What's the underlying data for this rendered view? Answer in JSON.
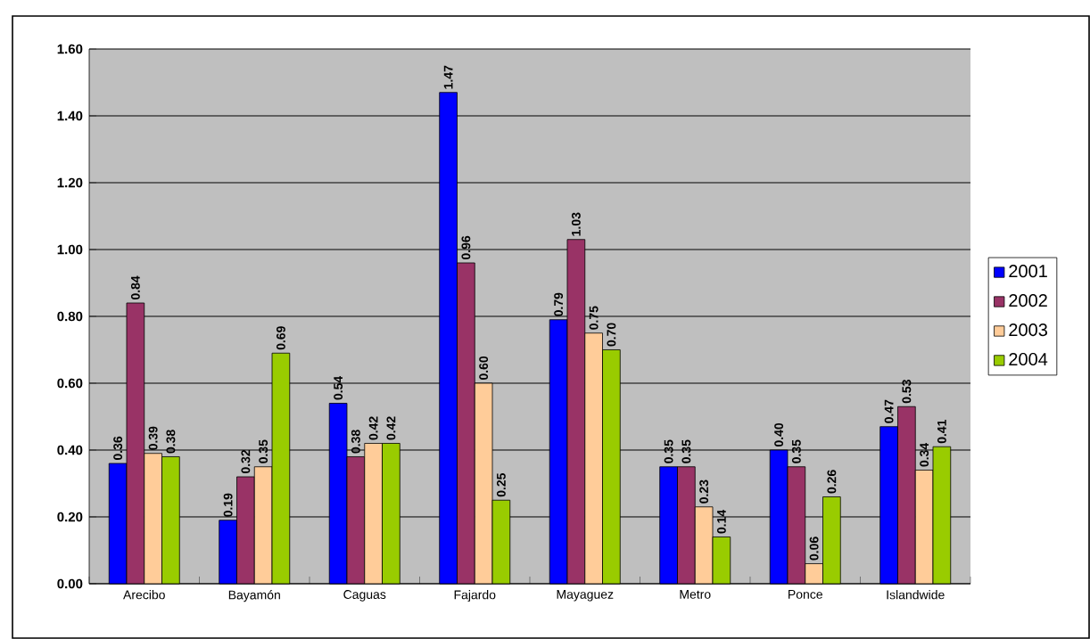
{
  "chart_data": {
    "type": "bar",
    "categories": [
      "Arecibo",
      "Bayamón",
      "Caguas",
      "Fajardo",
      "Mayaguez",
      "Metro",
      "Ponce",
      "Islandwide"
    ],
    "series": [
      {
        "name": "2001",
        "color": "#0000ff",
        "values": [
          0.36,
          0.19,
          0.54,
          1.47,
          0.79,
          0.35,
          0.4,
          0.47
        ],
        "value_labels": [
          "0.36",
          "0.19",
          "0.54",
          "1.47",
          "0.79",
          "0.35",
          "0.40",
          "0.47"
        ]
      },
      {
        "name": "2002",
        "color": "#993366",
        "values": [
          0.84,
          0.32,
          0.38,
          0.96,
          1.03,
          0.35,
          0.35,
          0.53
        ],
        "value_labels": [
          "0.84",
          "0.32",
          "0.38",
          "0.96",
          "1.03",
          "0.35",
          "0.35",
          "0.53"
        ]
      },
      {
        "name": "2003",
        "color": "#ffcc99",
        "values": [
          0.39,
          0.35,
          0.42,
          0.6,
          0.75,
          0.23,
          0.06,
          0.34
        ],
        "value_labels": [
          "0.39",
          "0.35",
          "0.42",
          "0.60",
          "0.75",
          "0.23",
          "0.06",
          "0.34"
        ]
      },
      {
        "name": "2004",
        "color": "#99cc00",
        "values": [
          0.38,
          0.69,
          0.42,
          0.25,
          0.7,
          0.14,
          0.26,
          0.41
        ],
        "value_labels": [
          "0.38",
          "0.69",
          "0.42",
          "0.25",
          "0.70",
          "0.14",
          "0.26",
          "0.41"
        ]
      }
    ],
    "ylim": [
      0,
      1.6
    ],
    "yticks": [
      {
        "value": 0,
        "label": "0.00"
      },
      {
        "value": 0.2,
        "label": "0.20"
      },
      {
        "value": 0.4,
        "label": "0.40"
      },
      {
        "value": 0.6,
        "label": "0.60"
      },
      {
        "value": 0.8,
        "label": "0.80"
      },
      {
        "value": 1.0,
        "label": "1.00"
      },
      {
        "value": 1.2,
        "label": "1.20"
      },
      {
        "value": 1.4,
        "label": "1.40"
      },
      {
        "value": 1.6,
        "label": "1.60"
      }
    ],
    "grid": "y",
    "legend": "right"
  }
}
